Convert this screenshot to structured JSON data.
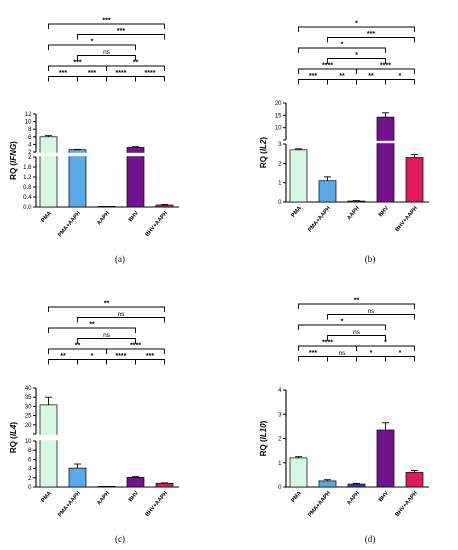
{
  "colors": {
    "PMA": "#d6f7e6",
    "PMA+AAPH": "#5ba8e6",
    "AAPH": "#3b3bb8",
    "BHV": "#73128f",
    "BHV+AAPH": "#e0185e"
  },
  "chart_data": [
    {
      "panel": "(a)",
      "type": "bar",
      "ylabel_prefix": "RQ (",
      "ylabel_gene": "IFNG",
      "ylabel_suffix": ")",
      "categories": [
        "PMA",
        "PMA+AAPH",
        "AAPH",
        "BHV",
        "BHV+AAPH"
      ],
      "values": [
        6.0,
        2.6,
        0.0,
        3.2,
        0.08
      ],
      "errors": [
        0.3,
        0.08,
        0.0,
        0.2,
        0.02
      ],
      "axis_break": true,
      "y_lower_ticks": [
        "0.0",
        "0.4",
        "0.8",
        "1.2",
        "1.6",
        "2"
      ],
      "y_upper_ticks": [
        "2",
        "4",
        "6",
        "8",
        "10",
        "12"
      ],
      "lower_range": [
        0,
        2
      ],
      "upper_range": [
        2,
        12
      ],
      "comparisons": [
        {
          "from": 0,
          "to": 1,
          "label": "***"
        },
        {
          "from": 1,
          "to": 2,
          "label": "***"
        },
        {
          "from": 3,
          "to": 4,
          "label": "****"
        },
        {
          "from": 0,
          "to": 2,
          "label": "***"
        },
        {
          "from": 2,
          "to": 3,
          "label": "****"
        },
        {
          "from": 1,
          "to": 3,
          "label": "ns"
        },
        {
          "from": 2,
          "to": 4,
          "label": "**"
        },
        {
          "from": 0,
          "to": 3,
          "label": "*"
        },
        {
          "from": 1,
          "to": 4,
          "label": "***"
        },
        {
          "from": 0,
          "to": 4,
          "label": "***"
        }
      ]
    },
    {
      "panel": "(b)",
      "type": "bar",
      "ylabel_prefix": "RQ (",
      "ylabel_gene": "IL2",
      "ylabel_suffix": ")",
      "categories": [
        "PMA",
        "PMA+AAPH",
        "AAPH",
        "BHV",
        "BHV+AAPH"
      ],
      "values": [
        2.7,
        1.1,
        0.05,
        13.5,
        2.3
      ],
      "errors": [
        0.05,
        0.2,
        0.02,
        2.0,
        0.15
      ],
      "axis_break": true,
      "y_lower_ticks": [
        "0",
        "1",
        "2",
        "3"
      ],
      "y_upper_ticks": [
        "5",
        "10",
        "15",
        "20"
      ],
      "lower_range": [
        0,
        3
      ],
      "upper_range": [
        3,
        20
      ],
      "comparisons": [
        {
          "from": 0,
          "to": 1,
          "label": "***"
        },
        {
          "from": 1,
          "to": 2,
          "label": "**"
        },
        {
          "from": 2,
          "to": 3,
          "label": "**"
        },
        {
          "from": 3,
          "to": 4,
          "label": "*"
        },
        {
          "from": 0,
          "to": 2,
          "label": "****"
        },
        {
          "from": 2,
          "to": 4,
          "label": "****"
        },
        {
          "from": 1,
          "to": 3,
          "label": "*"
        },
        {
          "from": 0,
          "to": 3,
          "label": "*"
        },
        {
          "from": 1,
          "to": 4,
          "label": "***"
        },
        {
          "from": 0,
          "to": 4,
          "label": "*"
        }
      ]
    },
    {
      "panel": "(c)",
      "type": "bar",
      "ylabel_prefix": "RQ (",
      "ylabel_gene": "IL4",
      "ylabel_suffix": ")",
      "categories": [
        "PMA",
        "PMA+AAPH",
        "AAPH",
        "BHV",
        "BHV+AAPH"
      ],
      "values": [
        29,
        4.1,
        0.03,
        2.1,
        0.8
      ],
      "errors": [
        5,
        0.9,
        0.01,
        0.15,
        0.1
      ],
      "axis_break": true,
      "y_lower_ticks": [
        "0",
        "2",
        "4",
        "6",
        "8",
        "10"
      ],
      "y_upper_ticks": [
        "15",
        "20",
        "25",
        "30",
        "35",
        "40"
      ],
      "lower_range": [
        0,
        10
      ],
      "upper_range": [
        10,
        40
      ],
      "comparisons": [
        {
          "from": 0,
          "to": 1,
          "label": "**"
        },
        {
          "from": 1,
          "to": 2,
          "label": "*"
        },
        {
          "from": 2,
          "to": 3,
          "label": "****"
        },
        {
          "from": 3,
          "to": 4,
          "label": "***"
        },
        {
          "from": 0,
          "to": 2,
          "label": "**"
        },
        {
          "from": 2,
          "to": 4,
          "label": "****"
        },
        {
          "from": 1,
          "to": 3,
          "label": "ns"
        },
        {
          "from": 0,
          "to": 3,
          "label": "**"
        },
        {
          "from": 1,
          "to": 4,
          "label": "ns"
        },
        {
          "from": 0,
          "to": 4,
          "label": "**"
        }
      ]
    },
    {
      "panel": "(d)",
      "type": "bar",
      "ylabel_prefix": "RQ (",
      "ylabel_gene": "IL10",
      "ylabel_suffix": ")",
      "categories": [
        "PMA",
        "PMA+AAPH",
        "AAPH",
        "BHV",
        "BHV+AAPH"
      ],
      "values": [
        1.2,
        0.25,
        0.12,
        2.35,
        0.6
      ],
      "errors": [
        0.05,
        0.05,
        0.03,
        0.3,
        0.08
      ],
      "axis_break": false,
      "y_ticks": [
        "0",
        "1",
        "2",
        "3",
        "4"
      ],
      "range": [
        0,
        4
      ],
      "comparisons": [
        {
          "from": 0,
          "to": 1,
          "label": "***"
        },
        {
          "from": 1,
          "to": 2,
          "label": "ns"
        },
        {
          "from": 2,
          "to": 3,
          "label": "*"
        },
        {
          "from": 3,
          "to": 4,
          "label": "*"
        },
        {
          "from": 0,
          "to": 2,
          "label": "****"
        },
        {
          "from": 2,
          "to": 4,
          "label": "*"
        },
        {
          "from": 0,
          "to": 3,
          "label": "*"
        },
        {
          "from": 1,
          "to": 3,
          "label": "ns"
        },
        {
          "from": 1,
          "to": 4,
          "label": "ns"
        },
        {
          "from": 0,
          "to": 4,
          "label": "**"
        }
      ]
    }
  ]
}
